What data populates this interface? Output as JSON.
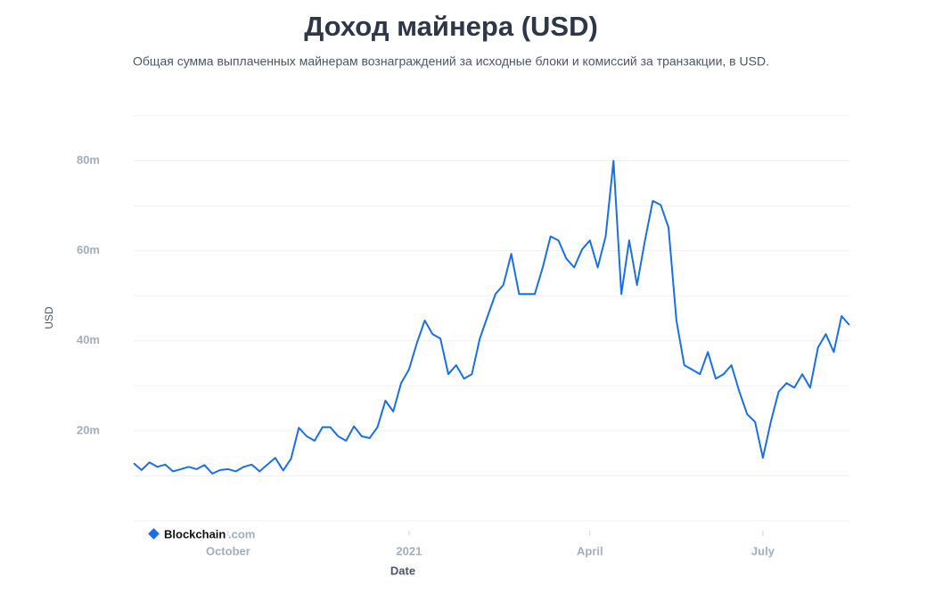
{
  "chart_data": {
    "type": "line",
    "title": "Доход майнера (USD)",
    "subtitle": "Общая сумма выплаченных майнерам вознаграждений за исходные блоки и комиссий за транзакции, в USD.",
    "x_label": "Date",
    "y_label": "USD",
    "watermark": {
      "brand": "Blockchain",
      "suffix": ".com"
    },
    "categories": [
      null,
      null,
      null,
      null,
      null,
      null,
      null,
      null,
      null,
      null,
      null,
      null,
      "October",
      null,
      null,
      null,
      null,
      null,
      null,
      null,
      null,
      null,
      null,
      null,
      null,
      null,
      null,
      null,
      null,
      null,
      null,
      null,
      null,
      null,
      null,
      "2021",
      null,
      null,
      null,
      null,
      null,
      null,
      null,
      null,
      null,
      null,
      null,
      null,
      null,
      null,
      null,
      null,
      null,
      null,
      null,
      null,
      null,
      null,
      "April",
      null,
      null,
      null,
      null,
      null,
      null,
      null,
      null,
      null,
      null,
      null,
      null,
      null,
      null,
      null,
      null,
      null,
      null,
      null,
      null,
      null,
      "July",
      null,
      null,
      null,
      null,
      null,
      null,
      null,
      null,
      null,
      null,
      null
    ],
    "values": [
      12.8,
      11.3,
      13,
      12,
      12.5,
      11,
      11.5,
      12,
      11.5,
      12.4,
      10.5,
      11.3,
      11.5,
      11,
      12,
      12.5,
      11,
      12.5,
      14,
      11.2,
      13.8,
      20.7,
      18.8,
      17.8,
      20.8,
      20.8,
      18.8,
      17.8,
      21,
      18.8,
      18.4,
      20.8,
      26.7,
      24.3,
      30.6,
      33.6,
      39.5,
      44.5,
      41.5,
      40.5,
      32.6,
      34.6,
      31.6,
      32.6,
      40.5,
      45.5,
      50.4,
      52.4,
      59.3,
      50.4,
      50.4,
      50.4,
      56.3,
      63.2,
      62.3,
      58.3,
      56.3,
      60.3,
      62.3,
      56.3,
      63.2,
      80,
      50.4,
      62.3,
      52.4,
      62.3,
      71.1,
      70.2,
      65.2,
      44.5,
      34.6,
      33.6,
      32.6,
      37.5,
      31.6,
      32.6,
      34.6,
      28.7,
      23.7,
      22,
      14,
      22,
      28.7,
      30.6,
      29.6,
      32.6,
      29.6,
      38.5,
      41.5,
      37.5,
      45.5,
      43.5
    ],
    "color": "#1a6fe6",
    "ylim": [
      0,
      90
    ],
    "yticks": [
      {
        "value": 20,
        "label": "20m"
      },
      {
        "value": 40,
        "label": "40m"
      },
      {
        "value": 60,
        "label": "60m"
      },
      {
        "value": 80,
        "label": "80m"
      }
    ],
    "minor_yticks": [
      0,
      10,
      30,
      50,
      70,
      90
    ],
    "grid": true
  }
}
